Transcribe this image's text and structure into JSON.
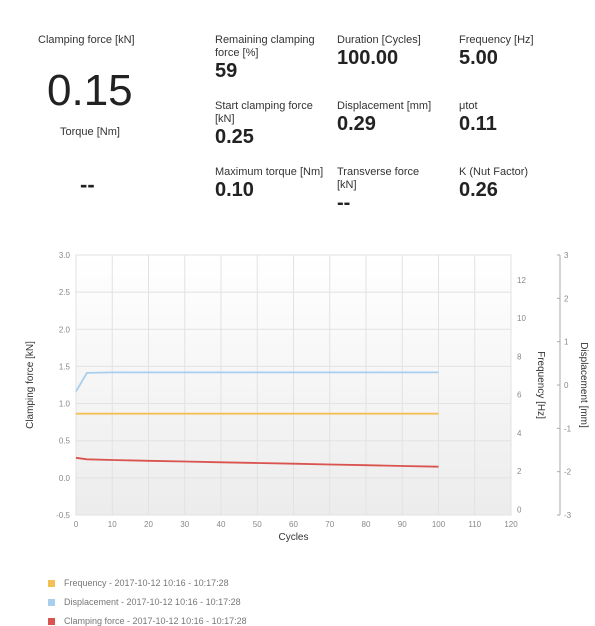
{
  "metrics": {
    "clamping_force": {
      "label": "Clamping force [kN]",
      "value": "0.15"
    },
    "torque": {
      "label": "Torque [Nm]",
      "value": "--"
    },
    "remaining_clamping_force": {
      "label": "Remaining clamping force [%]",
      "value": "59"
    },
    "duration": {
      "label": "Duration [Cycles]",
      "value": "100.00"
    },
    "frequency": {
      "label": "Frequency [Hz]",
      "value": "5.00"
    },
    "start_clamping_force": {
      "label": "Start clamping force [kN]",
      "value": "0.25"
    },
    "displacement": {
      "label": "Displacement [mm]",
      "value": "0.29"
    },
    "mu_tot": {
      "label": "μtot",
      "value": "0.11"
    },
    "maximum_torque": {
      "label": "Maximum torque [Nm]",
      "value": "0.10"
    },
    "transverse_force": {
      "label": "Transverse force [kN]",
      "value": "--"
    },
    "k_nut_factor": {
      "label": "K (Nut Factor)",
      "value": "0.26"
    }
  },
  "legend": [
    {
      "label": "Frequency - 2017-10-12 10:16 - 10:17:28",
      "color": "#f2c055"
    },
    {
      "label": "Displacement - 2017-10-12 10:16 - 10:17:28",
      "color": "#a9cfee"
    },
    {
      "label": "Clamping force - 2017-10-12 10:16 - 10:17:28",
      "color": "#d9534f"
    }
  ],
  "chart_data": {
    "type": "line",
    "xlabel": "Cycles",
    "x_ticks": [
      0,
      10,
      20,
      30,
      40,
      50,
      60,
      70,
      80,
      90,
      100,
      110,
      120
    ],
    "xlim": [
      0,
      120
    ],
    "y_left": {
      "label": "Clamping force [kN]",
      "lim": [
        -0.5,
        3.0
      ],
      "ticks": [
        "3.0",
        "2.5",
        "2.0",
        "1.5",
        "1.0",
        "0.5",
        "0.0",
        "-0.5"
      ]
    },
    "y_right1": {
      "label": "Frequency [Hz]",
      "lim": [
        -0.3,
        13.3
      ],
      "ticks": [
        "12",
        "10",
        "8",
        "6",
        "4",
        "2",
        "0"
      ]
    },
    "y_right2": {
      "label": "Displacement [mm]",
      "lim": [
        -3,
        3
      ],
      "ticks": [
        "3",
        "2",
        "1",
        "0",
        "-1",
        "-2",
        "-3"
      ]
    },
    "grid": true,
    "series": [
      {
        "name": "Frequency",
        "axis": "y_right1",
        "color": "#f2c055",
        "x": [
          0,
          100
        ],
        "y": [
          5.0,
          5.0
        ]
      },
      {
        "name": "Displacement",
        "axis": "y_right2",
        "color": "#a9cfee",
        "x": [
          0,
          3,
          10,
          50,
          100
        ],
        "y": [
          -0.15,
          0.28,
          0.29,
          0.29,
          0.29
        ]
      },
      {
        "name": "Clamping force",
        "axis": "y_left",
        "color": "#d9534f",
        "x": [
          0,
          3,
          10,
          20,
          30,
          40,
          50,
          60,
          70,
          80,
          90,
          100
        ],
        "y": [
          0.27,
          0.25,
          0.24,
          0.23,
          0.22,
          0.21,
          0.2,
          0.19,
          0.18,
          0.17,
          0.16,
          0.15
        ]
      }
    ]
  }
}
